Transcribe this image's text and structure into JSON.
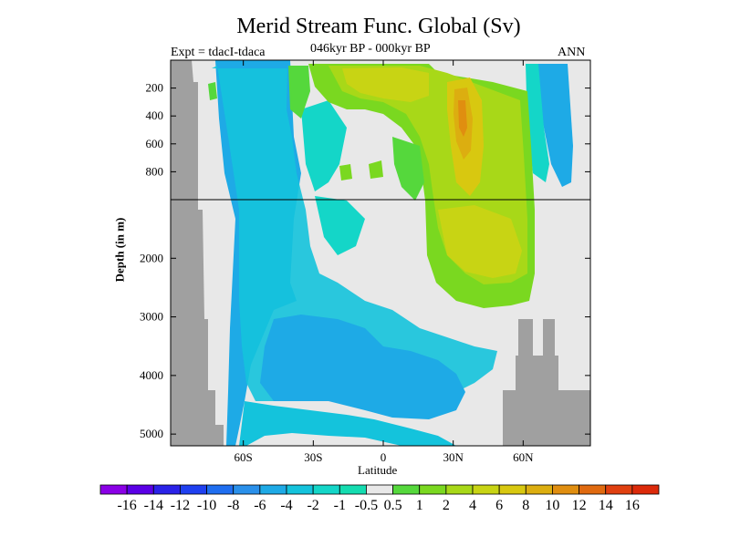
{
  "chart_data": {
    "type": "heatmap",
    "title": "Merid Stream Func. Global (Sv)",
    "subtitle_left": "Expt = tdacI-tdaca",
    "subtitle_center": "046kyr BP - 000kyr BP",
    "subtitle_right": "ANN",
    "xlabel": "Latitude",
    "ylabel": "Depth (in m)",
    "x_ticks": [
      "60S",
      "30S",
      "0",
      "30N",
      "60N"
    ],
    "x_tick_values": [
      -60,
      -30,
      0,
      30,
      60
    ],
    "xlim": [
      -90,
      90
    ],
    "y_ticks_upper": [
      "200",
      "400",
      "600",
      "800"
    ],
    "y_ticks_upper_values": [
      200,
      400,
      600,
      800
    ],
    "y_ticks_lower": [
      "2000",
      "3000",
      "4000",
      "5000"
    ],
    "y_ticks_lower_values": [
      2000,
      3000,
      4000,
      5000
    ],
    "ylim": [
      0,
      5200
    ],
    "y_axis_break_at": 1000,
    "colorbar": {
      "labels": [
        "-16",
        "-14",
        "-12",
        "-10",
        "-8",
        "-6",
        "-4",
        "-2",
        "-1",
        "-0.5",
        "0.5",
        "1",
        "2",
        "4",
        "6",
        "8",
        "10",
        "12",
        "14",
        "16"
      ],
      "colors": [
        "#8a00e6",
        "#5a00e6",
        "#2a22e8",
        "#1f40f0",
        "#1f6ef0",
        "#2a90ea",
        "#1eaae6",
        "#14c3dc",
        "#14d6c8",
        "#14dcb0",
        "#e8e8e8",
        "#55d83c",
        "#7ad820",
        "#a8d818",
        "#c8d414",
        "#d8c810",
        "#dcae10",
        "#e08e10",
        "#e06a10",
        "#e04010",
        "#dc2a0a"
      ]
    },
    "regions": [
      {
        "name": "land-south",
        "value": "land"
      },
      {
        "name": "southern-cell-upper",
        "value": -6
      },
      {
        "name": "southern-cell-deep",
        "value": -4
      },
      {
        "name": "nadw-cell",
        "value": 4
      },
      {
        "name": "nadw-core",
        "value": 8
      },
      {
        "name": "land-north",
        "value": "land"
      }
    ]
  }
}
